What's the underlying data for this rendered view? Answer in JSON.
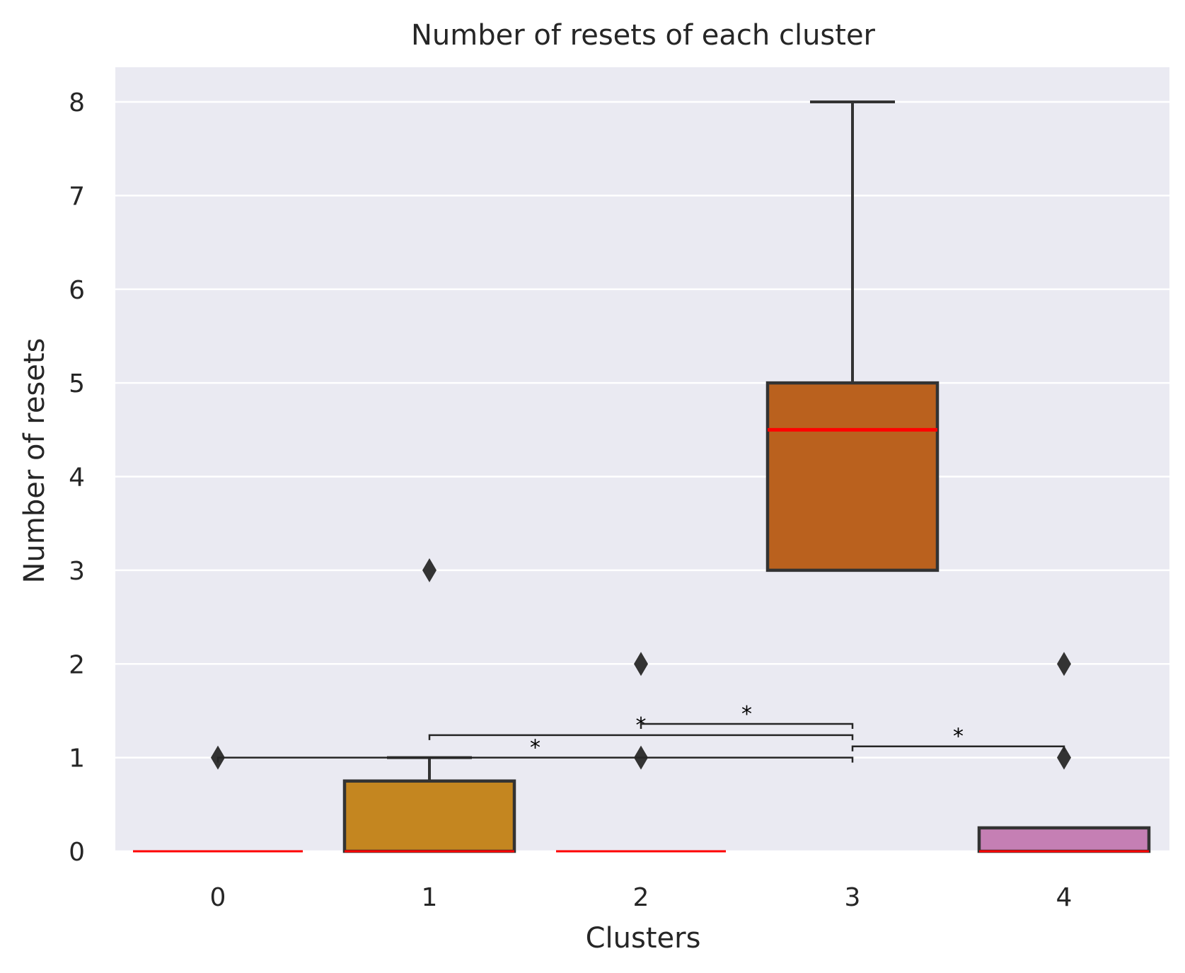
{
  "chart_data": {
    "type": "box",
    "title": "Number of resets of each cluster",
    "xlabel": "Clusters",
    "ylabel": "Number of resets",
    "ylim": [
      0,
      8.4
    ],
    "yticks": [
      0,
      1,
      2,
      3,
      4,
      5,
      6,
      7,
      8
    ],
    "categories": [
      "0",
      "1",
      "2",
      "3",
      "4"
    ],
    "grid": true,
    "boxes": [
      {
        "category": "0",
        "q1": 0,
        "median": 0,
        "q3": 0,
        "whisker_low": 0,
        "whisker_high": 0,
        "outliers": [
          1
        ],
        "color": "#0173b2"
      },
      {
        "category": "1",
        "q1": 0,
        "median": 0,
        "q3": 0.75,
        "whisker_low": 0,
        "whisker_high": 1,
        "outliers": [
          3
        ],
        "color": "#c48620"
      },
      {
        "category": "2",
        "q1": 0,
        "median": 0,
        "q3": 0,
        "whisker_low": 0,
        "whisker_high": 0,
        "outliers": [
          1,
          2
        ],
        "color": "#029e73"
      },
      {
        "category": "3",
        "q1": 3,
        "median": 4.5,
        "q3": 5,
        "whisker_low": 3,
        "whisker_high": 8,
        "outliers": [],
        "color": "#ba611e"
      },
      {
        "category": "4",
        "q1": 0,
        "median": 0,
        "q3": 0.25,
        "whisker_low": 0,
        "whisker_high": 0.25,
        "outliers": [
          1,
          2
        ],
        "color": "#c57fb4"
      }
    ],
    "significance": [
      {
        "from": "0",
        "to": "3",
        "y": 1.0,
        "label": "*"
      },
      {
        "from": "1",
        "to": "3",
        "y": 1.24,
        "label": "*"
      },
      {
        "from": "2",
        "to": "3",
        "y": 1.36,
        "label": "*"
      },
      {
        "from": "3",
        "to": "4",
        "y": 1.12,
        "label": "*"
      }
    ],
    "colors": {
      "background": "#eaeaf2",
      "grid": "#ffffff",
      "edge": "#333333",
      "median": "#ff0000"
    }
  }
}
